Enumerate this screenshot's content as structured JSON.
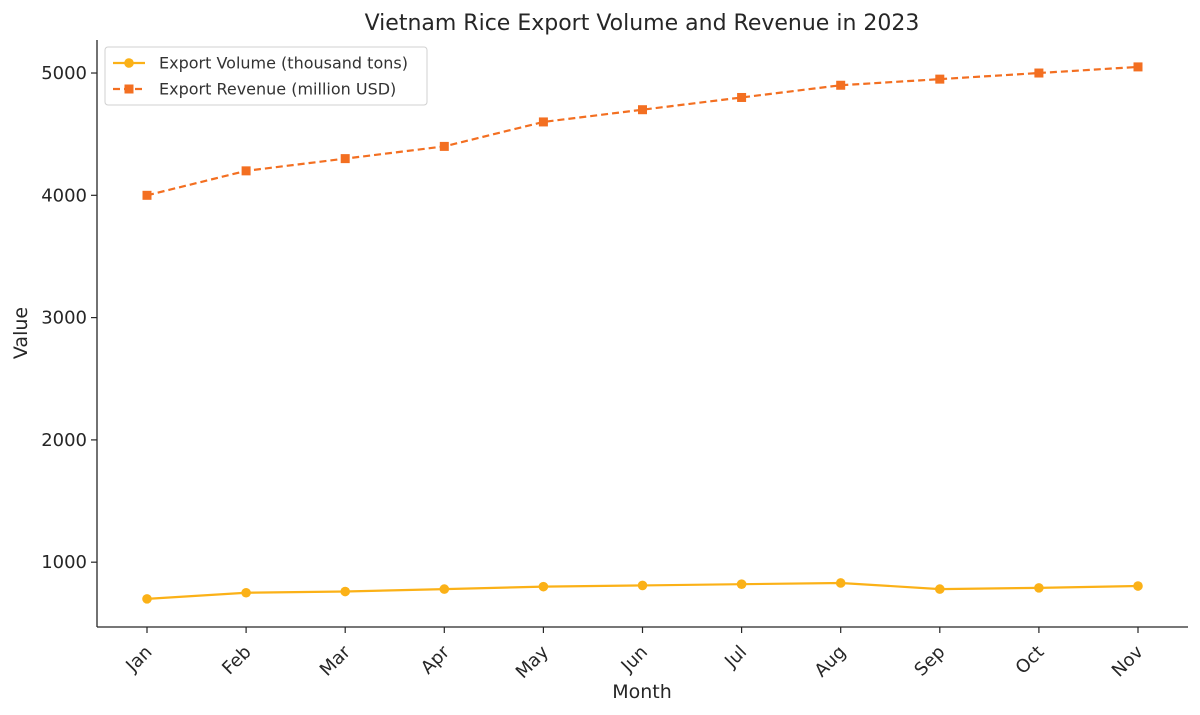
{
  "chart_data": {
    "type": "line",
    "title": "Vietnam Rice Export Volume and Revenue in 2023",
    "xlabel": "Month",
    "ylabel": "Value",
    "categories": [
      "Jan",
      "Feb",
      "Mar",
      "Apr",
      "May",
      "Jun",
      "Jul",
      "Aug",
      "Sep",
      "Oct",
      "Nov"
    ],
    "ylim": [
      470,
      5270
    ],
    "yticks": [
      1000,
      2000,
      3000,
      4000,
      5000
    ],
    "grid": false,
    "legend_position": "top-left",
    "series": [
      {
        "name": "Export Volume (thousand tons)",
        "color": "#fbb117",
        "line_style": "solid",
        "marker": "circle",
        "values": [
          700,
          750,
          760,
          780,
          800,
          810,
          820,
          830,
          780,
          790,
          805
        ]
      },
      {
        "name": "Export Revenue (million USD)",
        "color": "#f36f21",
        "line_style": "dashed",
        "marker": "square",
        "values": [
          4000,
          4200,
          4300,
          4400,
          4600,
          4700,
          4800,
          4900,
          4950,
          5000,
          5050
        ]
      }
    ]
  }
}
